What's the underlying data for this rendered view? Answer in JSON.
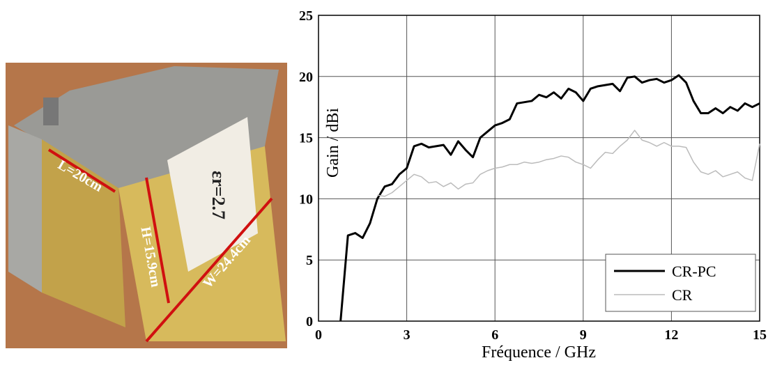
{
  "photo_labels": {
    "length": "L=20cm",
    "height": "H=15.9cm",
    "width": "W=24.4cm",
    "permittivity": "εr=2.7"
  },
  "chart_data": {
    "type": "line",
    "x_label": "Fréquence / GHz",
    "y_label": "Gain / dBi",
    "xlim": [
      0,
      15
    ],
    "xticks": [
      0,
      3,
      6,
      9,
      12,
      15
    ],
    "ylim": [
      0,
      25
    ],
    "yticks": [
      0,
      5,
      10,
      15,
      20,
      25
    ],
    "grid": true,
    "legend": "lower-right",
    "x": [
      0.75,
      1.0,
      1.25,
      1.5,
      1.75,
      2.0,
      2.25,
      2.5,
      2.75,
      3.0,
      3.25,
      3.5,
      3.75,
      4.0,
      4.25,
      4.5,
      4.75,
      5.0,
      5.25,
      5.5,
      5.75,
      6.0,
      6.25,
      6.5,
      6.75,
      7.0,
      7.25,
      7.5,
      7.75,
      8.0,
      8.25,
      8.5,
      8.75,
      9.0,
      9.25,
      9.5,
      9.75,
      10.0,
      10.25,
      10.5,
      10.75,
      11.0,
      11.25,
      11.5,
      11.75,
      12.0,
      12.25,
      12.5,
      12.75,
      13.0,
      13.25,
      13.5,
      13.75,
      14.0,
      14.25,
      14.5,
      14.75,
      15.0
    ],
    "series": [
      {
        "name": "CR-PC",
        "color": "#000000",
        "values": [
          0,
          7,
          7.2,
          6.8,
          8,
          10,
          11,
          11.2,
          12,
          12.5,
          14.3,
          14.5,
          14.2,
          14.3,
          14.4,
          13.6,
          14.7,
          14,
          13.4,
          15,
          15.5,
          16,
          16.2,
          16.5,
          17.8,
          17.9,
          18,
          18.5,
          18.3,
          18.7,
          18.2,
          19,
          18.7,
          18,
          19,
          19.2,
          19.3,
          19.4,
          18.8,
          19.9,
          20,
          19.5,
          19.7,
          19.8,
          19.5,
          19.7,
          20.1,
          19.5,
          18,
          17,
          17,
          17.4,
          17,
          17.5,
          17.2,
          17.8,
          17.5,
          17.8
        ]
      },
      {
        "name": "CR",
        "color": "#bbbbbb",
        "values": [
          null,
          null,
          null,
          null,
          null,
          10.3,
          10.2,
          10.5,
          11,
          11.5,
          12,
          11.8,
          11.3,
          11.4,
          11,
          11.3,
          10.8,
          11.2,
          11.3,
          12,
          12.3,
          12.5,
          12.6,
          12.8,
          12.8,
          13,
          12.9,
          13,
          13.2,
          13.3,
          13.5,
          13.4,
          13,
          12.8,
          12.5,
          13.2,
          13.8,
          13.7,
          14.3,
          14.8,
          15.6,
          14.8,
          14.6,
          14.3,
          14.6,
          14.3,
          14.3,
          14.2,
          13,
          12.2,
          12,
          12.3,
          11.8,
          12,
          12.2,
          11.7,
          11.5,
          14.5
        ]
      }
    ]
  }
}
